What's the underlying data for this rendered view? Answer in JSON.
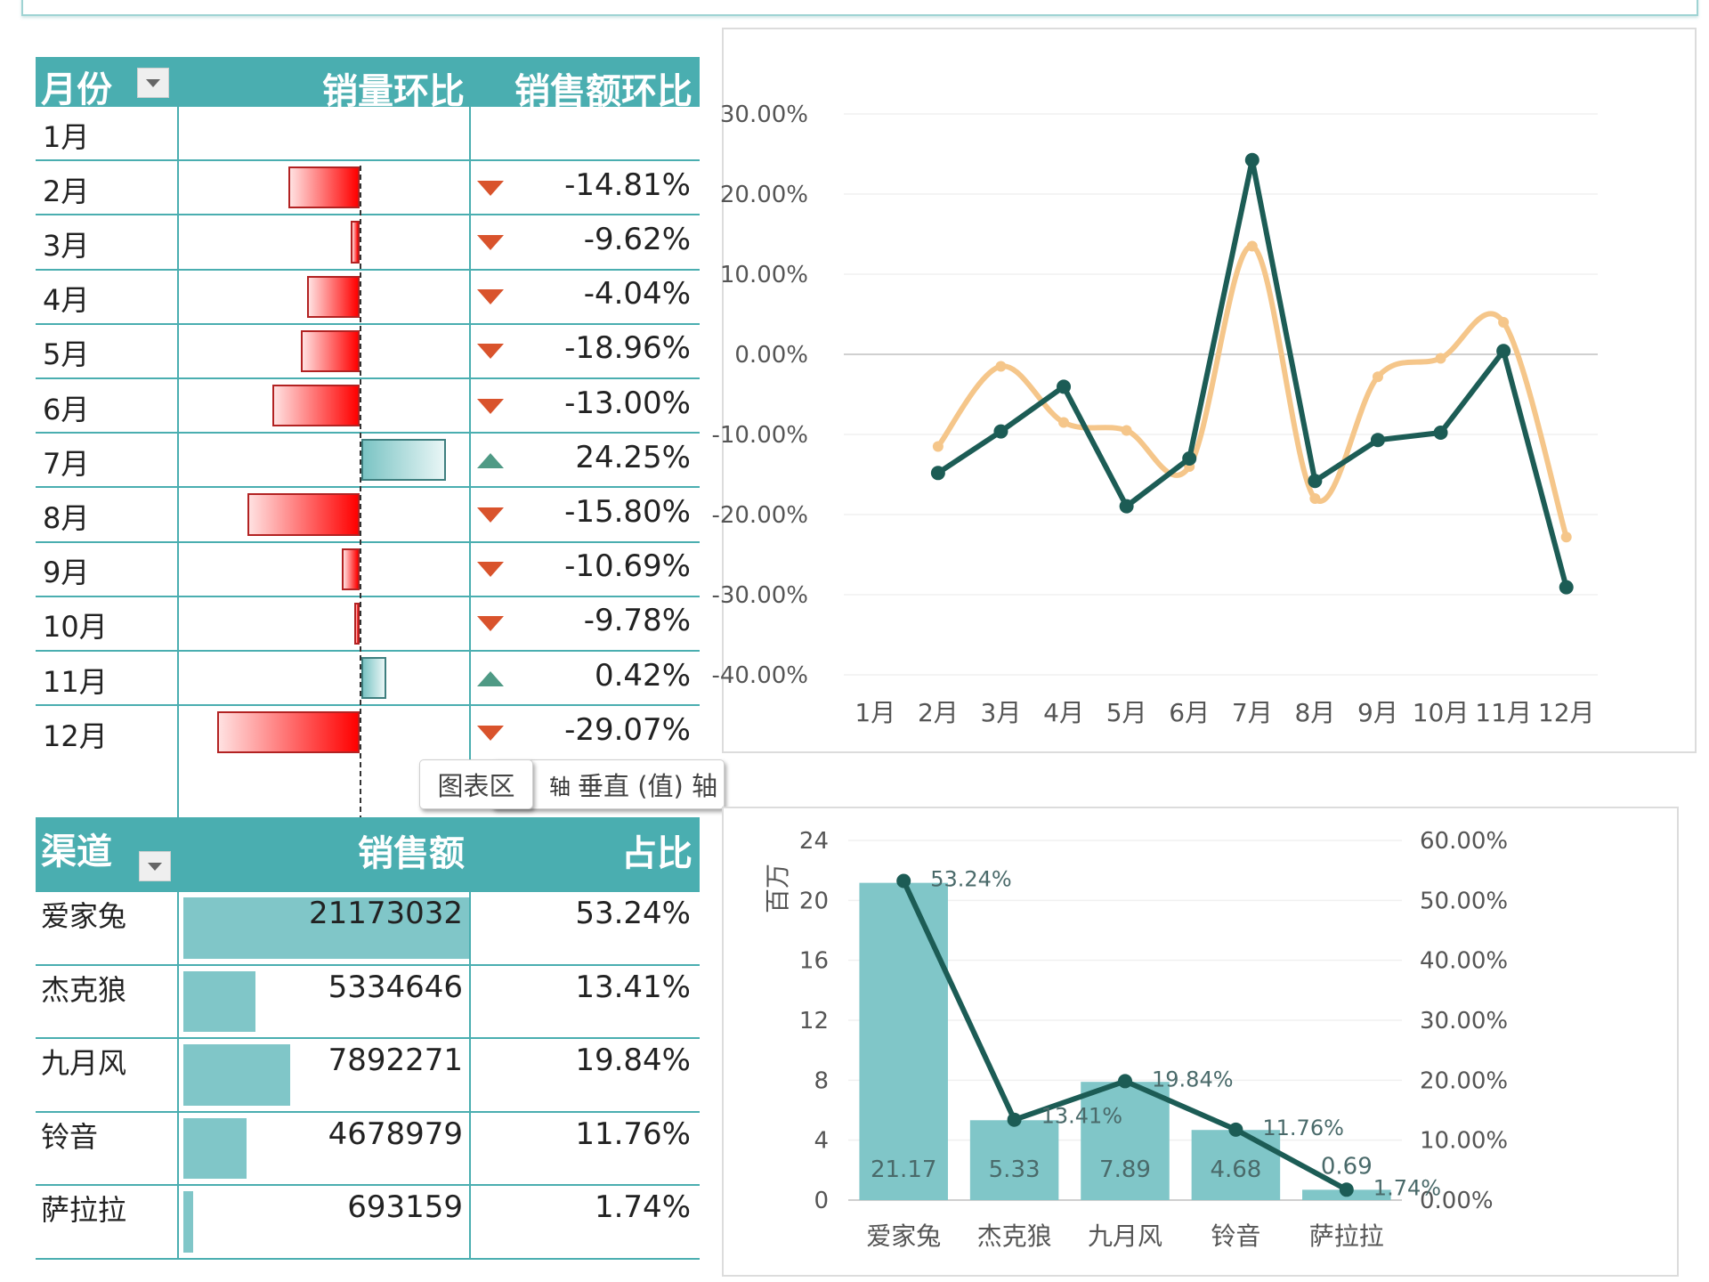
{
  "colors": {
    "header_bg": "#4aaeb0",
    "neg_bar_start": "#ffe1e1",
    "neg_bar_end": "#ff0000",
    "pos_bar": "#7bc4c4",
    "arrow_down": "#d9532c",
    "arrow_up": "#4f9a85",
    "line_sales_amount": "#1c5c55",
    "line_sales_volume": "#f5c68a",
    "channel_bar": "#80c6c8"
  },
  "month_table": {
    "headers": {
      "month": "月份",
      "volume_mom": "销量环比",
      "amount_mom": "销售额环比"
    },
    "filter_icon": "dropdown-arrow-icon",
    "rows": [
      {
        "month": "1月",
        "volume_mom": null,
        "amount_mom": "",
        "trend": ""
      },
      {
        "month": "2月",
        "volume_mom": -11.5,
        "amount_mom": "-14.81%",
        "trend": "down"
      },
      {
        "month": "3月",
        "volume_mom": -1.5,
        "amount_mom": "-9.62%",
        "trend": "down"
      },
      {
        "month": "4月",
        "volume_mom": -8.5,
        "amount_mom": "-4.04%",
        "trend": "down"
      },
      {
        "month": "5月",
        "volume_mom": -9.5,
        "amount_mom": "-18.96%",
        "trend": "down"
      },
      {
        "month": "6月",
        "volume_mom": -14.0,
        "amount_mom": "-13.00%",
        "trend": "down"
      },
      {
        "month": "7月",
        "volume_mom": 13.5,
        "amount_mom": "24.25%",
        "trend": "up"
      },
      {
        "month": "8月",
        "volume_mom": -18.0,
        "amount_mom": "-15.80%",
        "trend": "down"
      },
      {
        "month": "9月",
        "volume_mom": -2.8,
        "amount_mom": "-10.69%",
        "trend": "down"
      },
      {
        "month": "10月",
        "volume_mom": -0.5,
        "amount_mom": "-9.78%",
        "trend": "down"
      },
      {
        "month": "11月",
        "volume_mom": 4.0,
        "amount_mom": "0.42%",
        "trend": "up"
      },
      {
        "month": "12月",
        "volume_mom": -22.8,
        "amount_mom": "-29.07%",
        "trend": "down"
      }
    ]
  },
  "tooltip": {
    "primary": "图表区",
    "secondary_prefix": "轴",
    "secondary": "垂直 (值) 轴"
  },
  "channel_table": {
    "headers": {
      "channel": "渠道",
      "amount": "销售额",
      "share": "占比"
    },
    "filter_icon": "dropdown-arrow-icon",
    "rows": [
      {
        "channel": "爱家兔",
        "amount": "21173032",
        "amount_value": 21173032,
        "share": "53.24%"
      },
      {
        "channel": "杰克狼",
        "amount": "5334646",
        "amount_value": 5334646,
        "share": "13.41%"
      },
      {
        "channel": "九月风",
        "amount": "7892271",
        "amount_value": 7892271,
        "share": "19.84%"
      },
      {
        "channel": "铃音",
        "amount": "4678979",
        "amount_value": 4678979,
        "share": "11.76%"
      },
      {
        "channel": "萨拉拉",
        "amount": "693159",
        "amount_value": 693159,
        "share": "1.74%"
      }
    ]
  },
  "chart_data": [
    {
      "type": "line",
      "title": "",
      "xlabel": "",
      "ylabel": "",
      "categories": [
        "1月",
        "2月",
        "3月",
        "4月",
        "5月",
        "6月",
        "7月",
        "8月",
        "9月",
        "10月",
        "11月",
        "12月"
      ],
      "ylim": [
        -40,
        30
      ],
      "yticks": [
        "30.00%",
        "20.00%",
        "10.00%",
        "0.00%",
        "-10.00%",
        "-20.00%",
        "-30.00%",
        "-40.00%"
      ],
      "ytick_values": [
        30,
        20,
        10,
        0,
        -10,
        -20,
        -30,
        -40
      ],
      "grid": true,
      "legend": "none",
      "series": [
        {
          "name": "销量环比",
          "smooth": true,
          "values": [
            null,
            -11.5,
            -1.5,
            -8.5,
            -9.5,
            -14.0,
            13.5,
            -18.0,
            -2.8,
            -0.5,
            4.0,
            -22.8
          ]
        },
        {
          "name": "销售额环比",
          "smooth": false,
          "values": [
            null,
            -14.81,
            -9.62,
            -4.04,
            -18.96,
            -13.0,
            24.25,
            -15.8,
            -10.69,
            -9.78,
            0.42,
            -29.07
          ]
        }
      ]
    },
    {
      "type": "bar",
      "title": "",
      "xlabel": "",
      "ylabel": "百万",
      "categories": [
        "爱家兔",
        "杰克狼",
        "九月风",
        "铃音",
        "萨拉拉"
      ],
      "ylim": [
        0,
        24
      ],
      "yticks": [
        "24",
        "20",
        "16",
        "12",
        "8",
        "4",
        "0"
      ],
      "ytick_values": [
        24,
        20,
        16,
        12,
        8,
        4,
        0
      ],
      "y2lim": [
        0,
        60
      ],
      "y2ticks": [
        "60.00%",
        "50.00%",
        "40.00%",
        "30.00%",
        "20.00%",
        "10.00%",
        "0.00%"
      ],
      "y2tick_values": [
        60,
        50,
        40,
        30,
        20,
        10,
        0
      ],
      "grid": true,
      "legend": "none",
      "series": [
        {
          "name": "销售额",
          "axis": "left",
          "values": [
            21.17,
            5.33,
            7.89,
            4.68,
            0.69
          ],
          "labels": [
            "21.17",
            "5.33",
            "7.89",
            "4.68",
            "0.69"
          ]
        },
        {
          "name": "占比",
          "axis": "right",
          "type": "line",
          "values": [
            53.24,
            13.41,
            19.84,
            11.76,
            1.74
          ],
          "labels": [
            "53.24%",
            "13.41%",
            "19.84%",
            "11.76%",
            "1.74%"
          ]
        }
      ]
    }
  ]
}
